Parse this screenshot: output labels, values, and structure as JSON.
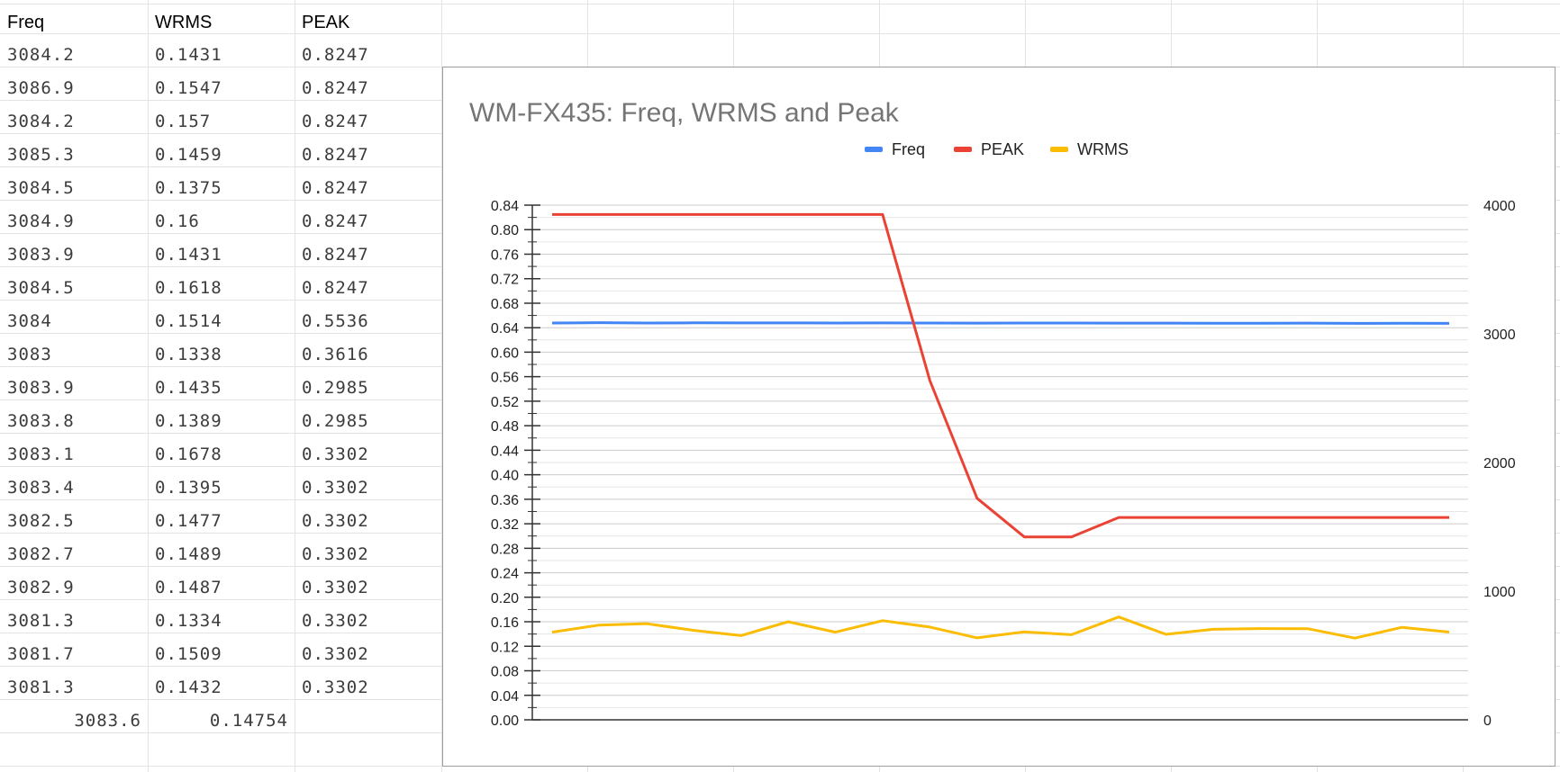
{
  "sheet": {
    "headers": [
      "Freq",
      "WRMS",
      "PEAK"
    ],
    "rows": [
      [
        "3084.2",
        "0.1431",
        "0.8247"
      ],
      [
        "3086.9",
        "0.1547",
        "0.8247"
      ],
      [
        "3084.2",
        "0.157",
        "0.8247"
      ],
      [
        "3085.3",
        "0.1459",
        "0.8247"
      ],
      [
        "3084.5",
        "0.1375",
        "0.8247"
      ],
      [
        "3084.9",
        "0.16",
        "0.8247"
      ],
      [
        "3083.9",
        "0.1431",
        "0.8247"
      ],
      [
        "3084.5",
        "0.1618",
        "0.8247"
      ],
      [
        "3084",
        "0.1514",
        "0.5536"
      ],
      [
        "3083",
        "0.1338",
        "0.3616"
      ],
      [
        "3083.9",
        "0.1435",
        "0.2985"
      ],
      [
        "3083.8",
        "0.1389",
        "0.2985"
      ],
      [
        "3083.1",
        "0.1678",
        "0.3302"
      ],
      [
        "3083.4",
        "0.1395",
        "0.3302"
      ],
      [
        "3082.5",
        "0.1477",
        "0.3302"
      ],
      [
        "3082.7",
        "0.1489",
        "0.3302"
      ],
      [
        "3082.9",
        "0.1487",
        "0.3302"
      ],
      [
        "3081.3",
        "0.1334",
        "0.3302"
      ],
      [
        "3081.7",
        "0.1509",
        "0.3302"
      ],
      [
        "3081.3",
        "0.1432",
        "0.3302"
      ]
    ],
    "summary": [
      "3083.6",
      "0.14754",
      ""
    ]
  },
  "chart_data": {
    "type": "line",
    "title": "WM-FX435: Freq, WRMS and Peak",
    "legend_position": "top",
    "grid": true,
    "left_axis": {
      "ylim": [
        0,
        0.84
      ],
      "ticks": [
        "0.00",
        "0.04",
        "0.08",
        "0.12",
        "0.16",
        "0.20",
        "0.24",
        "0.28",
        "0.32",
        "0.36",
        "0.40",
        "0.44",
        "0.48",
        "0.52",
        "0.56",
        "0.60",
        "0.64",
        "0.68",
        "0.72",
        "0.76",
        "0.80",
        "0.84"
      ]
    },
    "right_axis": {
      "ylim": [
        0,
        4000
      ],
      "ticks": [
        "0",
        "1000",
        "2000",
        "3000",
        "4000"
      ]
    },
    "series": [
      {
        "name": "Freq",
        "axis": "right",
        "color": "#4285f4",
        "values": [
          3084.2,
          3086.9,
          3084.2,
          3085.3,
          3084.5,
          3084.9,
          3083.9,
          3084.5,
          3084,
          3083,
          3083.9,
          3083.8,
          3083.1,
          3083.4,
          3082.5,
          3082.7,
          3082.9,
          3081.3,
          3081.7,
          3081.3
        ]
      },
      {
        "name": "PEAK",
        "axis": "left",
        "color": "#ea4335",
        "values": [
          0.8247,
          0.8247,
          0.8247,
          0.8247,
          0.8247,
          0.8247,
          0.8247,
          0.8247,
          0.5536,
          0.3616,
          0.2985,
          0.2985,
          0.3302,
          0.3302,
          0.3302,
          0.3302,
          0.3302,
          0.3302,
          0.3302,
          0.3302
        ]
      },
      {
        "name": "WRMS",
        "axis": "left",
        "color": "#fbbc04",
        "values": [
          0.1431,
          0.1547,
          0.157,
          0.1459,
          0.1375,
          0.16,
          0.1431,
          0.1618,
          0.1514,
          0.1338,
          0.1435,
          0.1389,
          0.1678,
          0.1395,
          0.1477,
          0.1489,
          0.1487,
          0.1334,
          0.1509,
          0.1432
        ]
      }
    ]
  }
}
